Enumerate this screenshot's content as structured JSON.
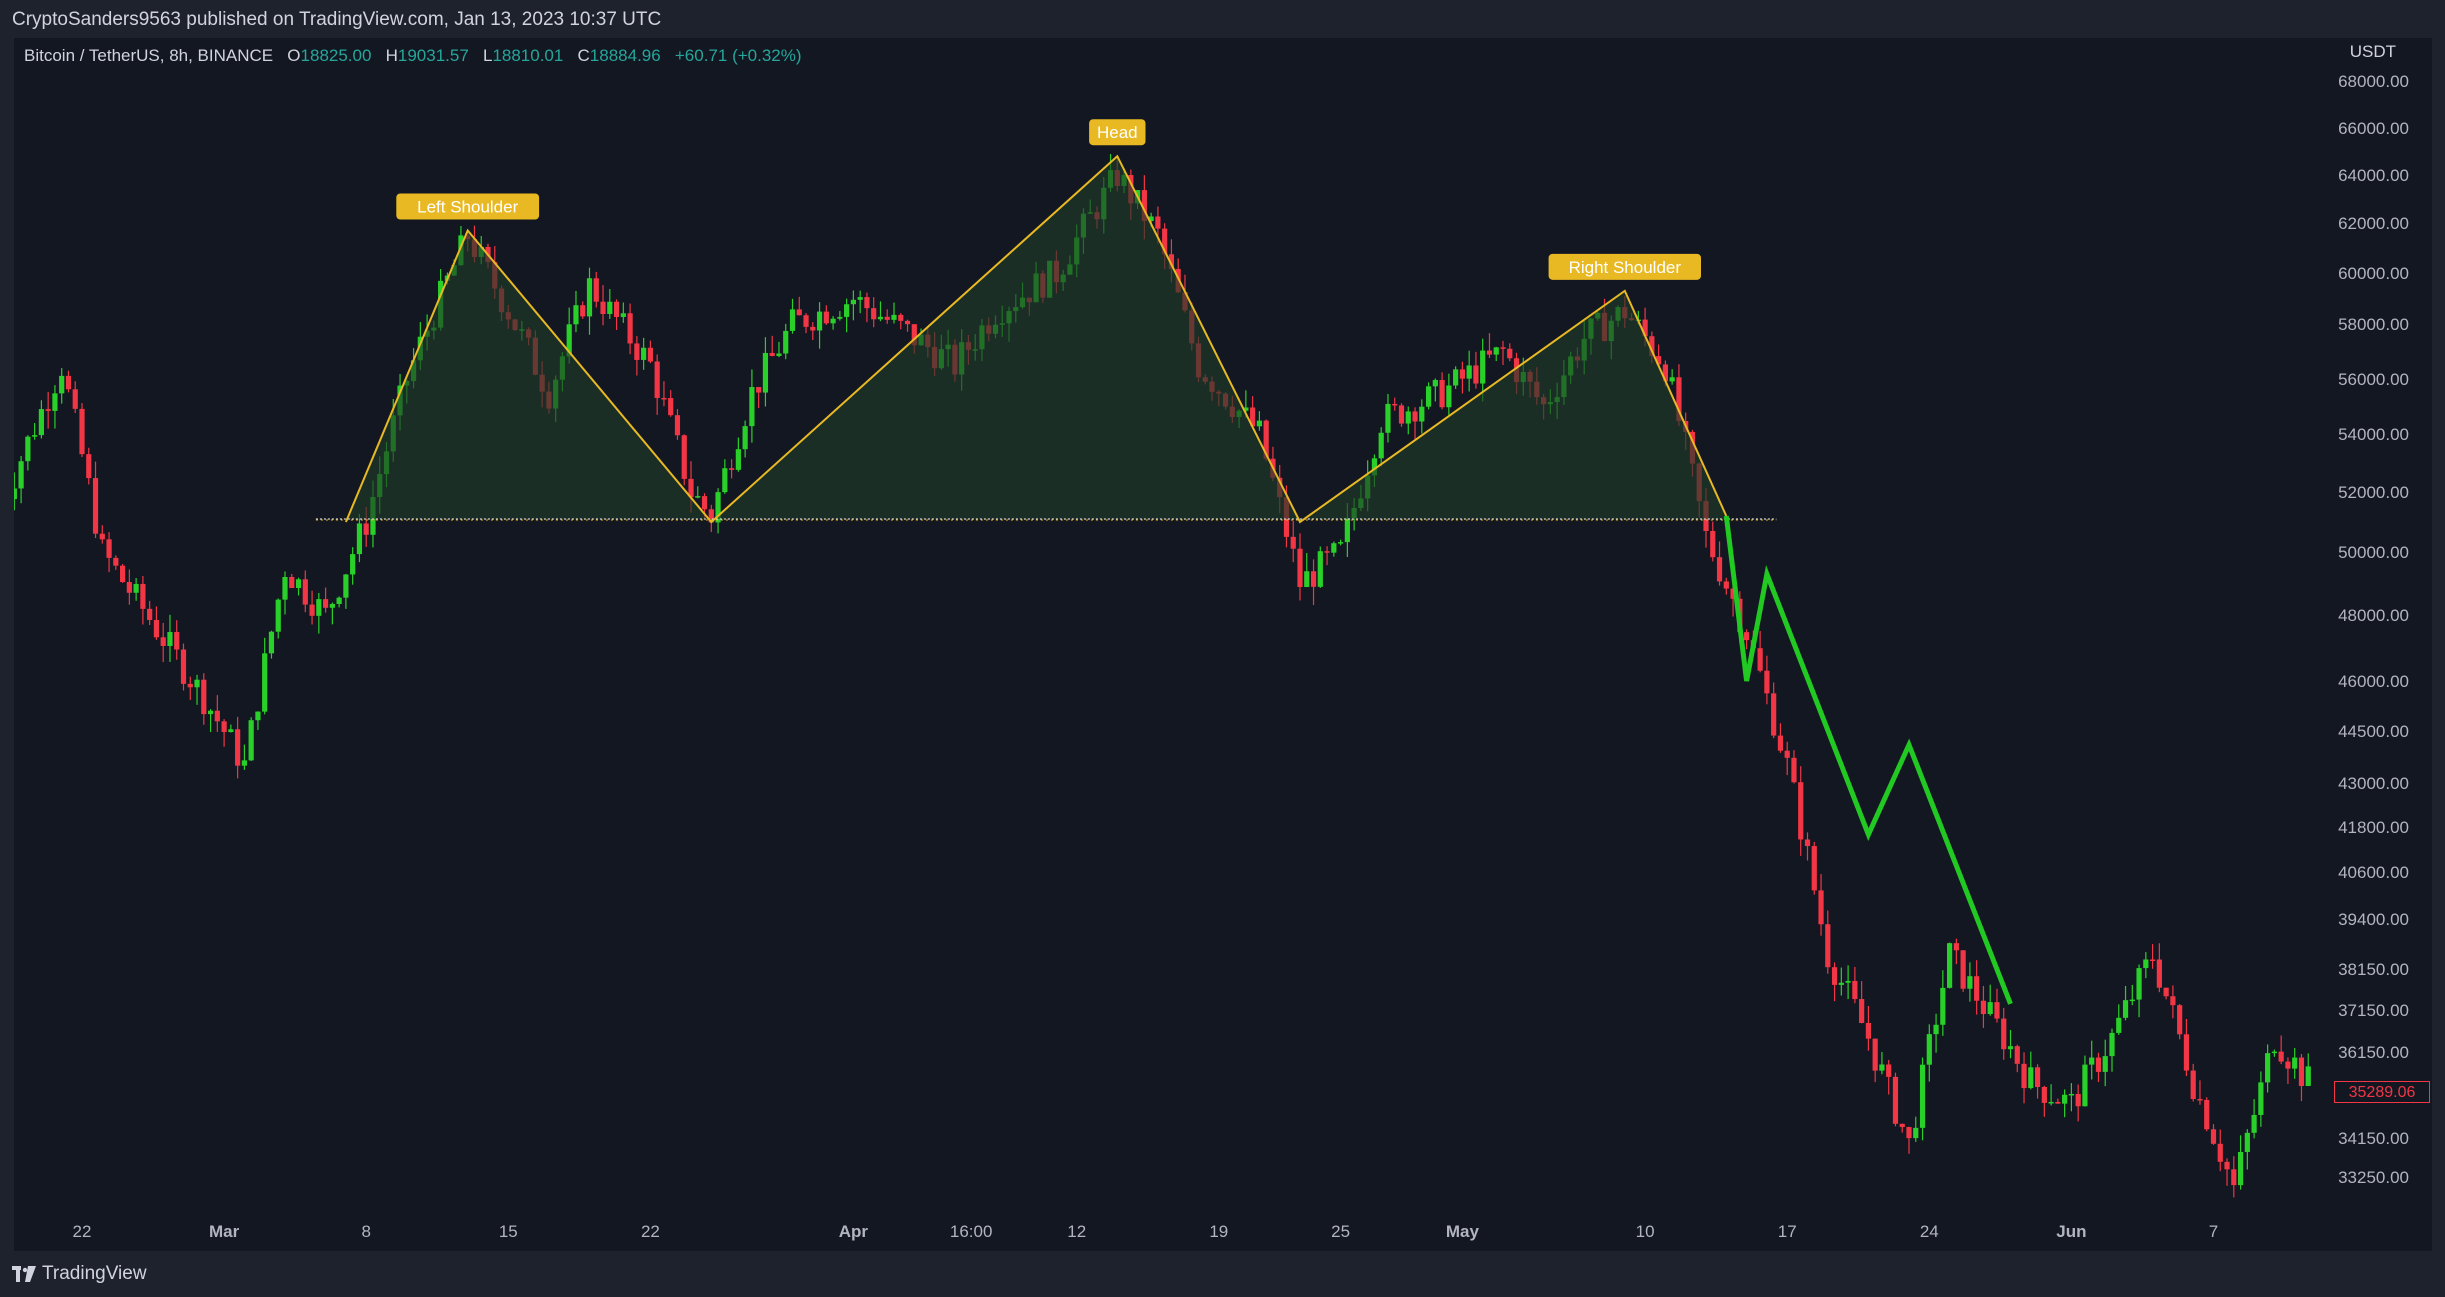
{
  "header": {
    "published_by": "CryptoSanders9563 published on TradingView.com, Jan 13, 2023 10:37 UTC"
  },
  "legend": {
    "symbol": "Bitcoin / TetherUS, 8h, BINANCE",
    "open_label": "O",
    "open": "18825.00",
    "high_label": "H",
    "high": "19031.57",
    "low_label": "L",
    "low": "18810.01",
    "close_label": "C",
    "close": "18884.96",
    "change": "+60.71 (+0.32%)"
  },
  "colors": {
    "up": "#2ad02a",
    "down": "#f23645",
    "pattern": "#e8b923",
    "projection": "#22c922",
    "fill": "#1e3a28"
  },
  "footer": {
    "brand": "TradingView"
  },
  "chart_data": {
    "type": "candlestick",
    "y_axis_unit": "USDT",
    "y_ticks": [
      "68000.00",
      "66000.00",
      "64000.00",
      "62000.00",
      "60000.00",
      "58000.00",
      "56000.00",
      "54000.00",
      "52000.00",
      "50000.00",
      "48000.00",
      "46000.00",
      "44500.00",
      "43000.00",
      "41800.00",
      "40600.00",
      "39400.00",
      "38150.00",
      "37150.00",
      "36150.00",
      "34150.00",
      "33250.00"
    ],
    "x_ticks": [
      "22",
      "Mar",
      "8",
      "15",
      "22",
      "Apr",
      "16:00",
      "12",
      "19",
      "25",
      "May",
      "10",
      "17",
      "24",
      "Jun",
      "7"
    ],
    "last_price": "35289.06",
    "annotations": [
      "Left Shoulder",
      "Head",
      "Right Shoulder"
    ],
    "pattern": "head-and-shoulders",
    "pattern_points": [
      {
        "date": "Mar 7",
        "price": 51000
      },
      {
        "date": "Mar 13",
        "price": 61700
      },
      {
        "date": "Mar 25",
        "price": 51000
      },
      {
        "date": "Apr 14",
        "price": 64800
      },
      {
        "date": "Apr 23",
        "price": 51000
      },
      {
        "date": "May 9",
        "price": 59300
      },
      {
        "date": "May 14",
        "price": 51200
      }
    ],
    "neckline_price": 51100,
    "projection_path": [
      {
        "date": "May 14",
        "price": 51200
      },
      {
        "date": "May 15",
        "price": 46000
      },
      {
        "date": "May 16",
        "price": 49300
      },
      {
        "date": "May 21",
        "price": 41600
      },
      {
        "date": "May 23",
        "price": 44100
      },
      {
        "date": "May 28",
        "price": 37300
      }
    ],
    "series_approx_close": [
      {
        "date": "Feb 18",
        "price": 51500
      },
      {
        "date": "Feb 21",
        "price": 56500
      },
      {
        "date": "Feb 23",
        "price": 50000
      },
      {
        "date": "Feb 25",
        "price": 48200
      },
      {
        "date": "Feb 28",
        "price": 45500
      },
      {
        "date": "Mar 2",
        "price": 43500
      },
      {
        "date": "Mar 4",
        "price": 49500
      },
      {
        "date": "Mar 6",
        "price": 48000
      },
      {
        "date": "Mar 8",
        "price": 51000
      },
      {
        "date": "Mar 10",
        "price": 56000
      },
      {
        "date": "Mar 13",
        "price": 61500
      },
      {
        "date": "Mar 15",
        "price": 58500
      },
      {
        "date": "Mar 17",
        "price": 55500
      },
      {
        "date": "Mar 19",
        "price": 59500
      },
      {
        "date": "Mar 22",
        "price": 56500
      },
      {
        "date": "Mar 24",
        "price": 52000
      },
      {
        "date": "Mar 25",
        "price": 51200
      },
      {
        "date": "Mar 27",
        "price": 55500
      },
      {
        "date": "Mar 29",
        "price": 58000
      },
      {
        "date": "Apr 1",
        "price": 59000
      },
      {
        "date": "Apr 4",
        "price": 57500
      },
      {
        "date": "Apr 6",
        "price": 56500
      },
      {
        "date": "Apr 8",
        "price": 58500
      },
      {
        "date": "Apr 11",
        "price": 60000
      },
      {
        "date": "Apr 14",
        "price": 64000
      },
      {
        "date": "Apr 16",
        "price": 61500
      },
      {
        "date": "Apr 18",
        "price": 56500
      },
      {
        "date": "Apr 21",
        "price": 54000
      },
      {
        "date": "Apr 23",
        "price": 49000
      },
      {
        "date": "Apr 25",
        "price": 50000
      },
      {
        "date": "Apr 27",
        "price": 54500
      },
      {
        "date": "Apr 30",
        "price": 55500
      },
      {
        "date": "May 3",
        "price": 57000
      },
      {
        "date": "May 5",
        "price": 55000
      },
      {
        "date": "May 7",
        "price": 57500
      },
      {
        "date": "May 9",
        "price": 58500
      },
      {
        "date": "May 11",
        "price": 56500
      },
      {
        "date": "May 13",
        "price": 50500
      },
      {
        "date": "May 15",
        "price": 47500
      },
      {
        "date": "May 17",
        "price": 43500
      },
      {
        "date": "May 19",
        "price": 38500
      },
      {
        "date": "May 21",
        "price": 36500
      },
      {
        "date": "May 23",
        "price": 34000
      },
      {
        "date": "May 25",
        "price": 38500
      },
      {
        "date": "May 27",
        "price": 37000
      },
      {
        "date": "May 29",
        "price": 35500
      },
      {
        "date": "May 31",
        "price": 35000
      },
      {
        "date": "Jun 2",
        "price": 36500
      },
      {
        "date": "Jun 4",
        "price": 38500
      },
      {
        "date": "Jun 6",
        "price": 35500
      },
      {
        "date": "Jun 8",
        "price": 33000
      },
      {
        "date": "Jun 10",
        "price": 36500
      },
      {
        "date": "Jun 12",
        "price": 35300
      }
    ]
  }
}
